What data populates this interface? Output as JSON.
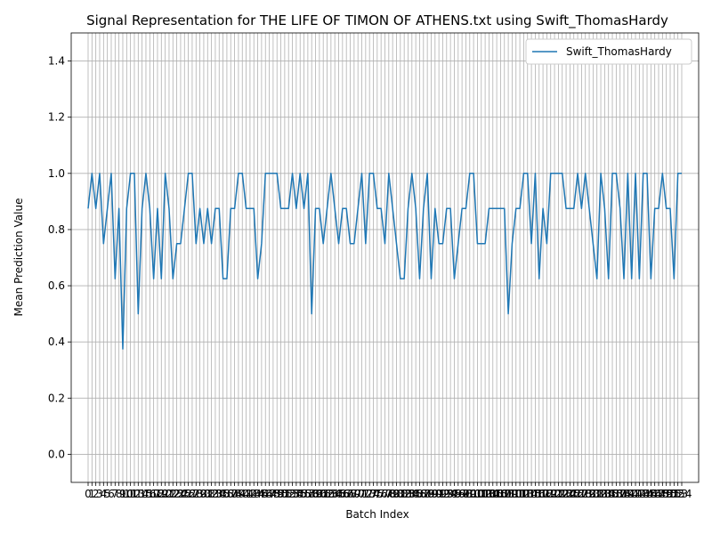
{
  "chart_data": {
    "type": "line",
    "title": "Signal Representation for THE LIFE OF TIMON OF ATHENS.txt using Swift_ThomasHardy",
    "xlabel": "Batch Index",
    "ylabel": "Mean Prediction Value",
    "ylim": [
      -0.1,
      1.5
    ],
    "yticks": [
      "0.0",
      "0.2",
      "0.4",
      "0.6",
      "0.8",
      "1.0",
      "1.2",
      "1.4"
    ],
    "ytick_values": [
      0,
      0.2,
      0.4,
      0.6,
      0.8,
      1.0,
      1.2,
      1.4
    ],
    "grid": true,
    "legend_position": "top-right",
    "series": [
      {
        "name": "Swift_ThomasHardy",
        "color": "#1f77b4",
        "values": [
          0.875,
          1.0,
          0.875,
          1.0,
          0.75,
          0.875,
          1.0,
          0.625,
          0.875,
          0.375,
          0.875,
          1.0,
          1.0,
          0.5,
          0.875,
          1.0,
          0.875,
          0.625,
          0.875,
          0.625,
          1.0,
          0.875,
          0.625,
          0.75,
          0.75,
          0.875,
          1.0,
          1.0,
          0.75,
          0.875,
          0.75,
          0.875,
          0.75,
          0.875,
          0.875,
          0.625,
          0.625,
          0.875,
          0.875,
          1.0,
          1.0,
          0.875,
          0.875,
          0.875,
          0.625,
          0.75,
          1.0,
          1.0,
          1.0,
          1.0,
          0.875,
          0.875,
          0.875,
          1.0,
          0.875,
          1.0,
          0.875,
          1.0,
          0.5,
          0.875,
          0.875,
          0.75,
          0.875,
          1.0,
          0.875,
          0.75,
          0.875,
          0.875,
          0.75,
          0.75,
          0.875,
          1.0,
          0.75,
          1.0,
          1.0,
          0.875,
          0.875,
          0.75,
          1.0,
          0.875,
          0.75,
          0.625,
          0.625,
          0.875,
          1.0,
          0.875,
          0.625,
          0.875,
          1.0,
          0.625,
          0.875,
          0.75,
          0.75,
          0.875,
          0.875,
          0.625,
          0.75,
          0.875,
          0.875,
          1.0,
          1.0,
          0.75,
          0.75,
          0.75,
          0.875,
          0.875,
          0.875,
          0.875,
          0.875,
          0.5,
          0.75,
          0.875,
          0.875,
          1.0,
          1.0,
          0.75,
          1.0,
          0.625,
          0.875,
          0.75,
          1.0,
          1.0,
          1.0,
          1.0,
          0.875,
          0.875,
          0.875,
          1.0,
          0.875,
          1.0,
          0.875,
          0.75,
          0.625,
          1.0,
          0.875,
          0.625,
          1.0,
          1.0,
          0.875,
          0.625,
          1.0,
          0.625,
          1.0,
          0.625,
          1.0,
          1.0,
          0.625,
          0.875,
          0.875,
          1.0,
          0.875,
          0.875,
          0.625,
          1.0,
          1.0
        ]
      }
    ]
  }
}
